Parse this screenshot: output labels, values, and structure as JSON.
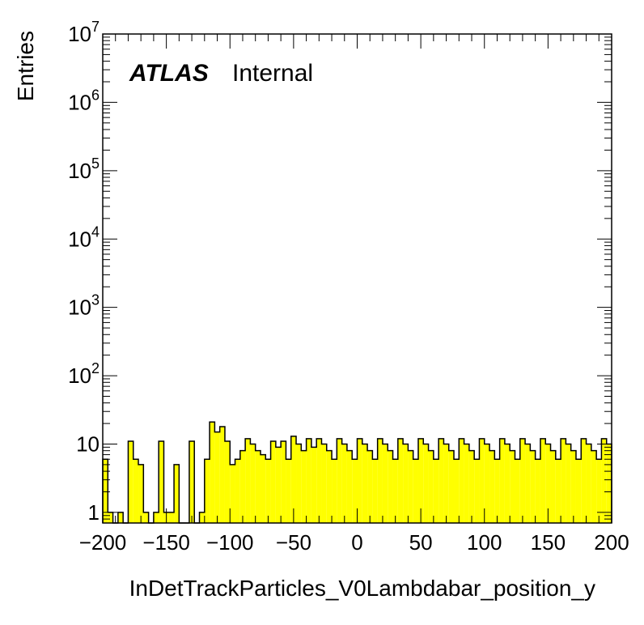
{
  "chart_data": {
    "type": "bar",
    "histogram": true,
    "title": "",
    "xlabel": "InDetTrackParticles_V0Lambdabar_position_y",
    "ylabel": "Entries",
    "xlim": [
      -200,
      200
    ],
    "ylim": [
      0.7,
      10000000
    ],
    "yscale": "log",
    "bin_width": 4,
    "grid": false,
    "legend": "none",
    "fill_color": "#ffff00",
    "line_color": "#000000",
    "label": {
      "experiment": "ATLAS",
      "status": "Internal"
    },
    "x_ticks": [
      {
        "value": -200,
        "label": "−200"
      },
      {
        "value": -150,
        "label": "−150"
      },
      {
        "value": -100,
        "label": "−100"
      },
      {
        "value": -50,
        "label": "−50"
      },
      {
        "value": 0,
        "label": "0"
      },
      {
        "value": 50,
        "label": "50"
      },
      {
        "value": 100,
        "label": "100"
      },
      {
        "value": 150,
        "label": "150"
      },
      {
        "value": 200,
        "label": "200"
      }
    ],
    "y_ticks": [
      {
        "value": 1,
        "base": "1",
        "exp": ""
      },
      {
        "value": 10,
        "base": "10",
        "exp": ""
      },
      {
        "value": 100,
        "base": "10",
        "exp": "2"
      },
      {
        "value": 1000,
        "base": "10",
        "exp": "3"
      },
      {
        "value": 10000,
        "base": "10",
        "exp": "4"
      },
      {
        "value": 100000,
        "base": "10",
        "exp": "5"
      },
      {
        "value": 1000000,
        "base": "10",
        "exp": "6"
      },
      {
        "value": 10000000,
        "base": "10",
        "exp": "7"
      }
    ],
    "x": [
      -198,
      -194,
      -190,
      -186,
      -182,
      -178,
      -174,
      -170,
      -166,
      -162,
      -158,
      -154,
      -150,
      -146,
      -142,
      -138,
      -134,
      -130,
      -126,
      -122,
      -118,
      -114,
      -110,
      -106,
      -102,
      -98,
      -94,
      -90,
      -86,
      -82,
      -78,
      -74,
      -70,
      -66,
      -62,
      -58,
      -54,
      -50,
      -46,
      -42,
      -38,
      -34,
      -30,
      -26,
      -22,
      -18,
      -14,
      -10,
      -6,
      -2,
      2,
      6,
      10,
      14,
      18,
      22,
      26,
      30,
      34,
      38,
      42,
      46,
      50,
      54,
      58,
      62,
      66,
      70,
      74,
      78,
      82,
      86,
      90,
      94,
      98,
      102,
      106,
      110,
      114,
      118,
      122,
      126,
      130,
      134,
      138,
      142,
      146,
      150,
      154,
      158,
      162,
      166,
      170,
      174,
      178,
      182,
      186,
      190,
      194,
      198
    ],
    "values": [
      6,
      1,
      0,
      1,
      0,
      11,
      6,
      5,
      1,
      0,
      1,
      11,
      1,
      1,
      5,
      0,
      0,
      11,
      0,
      1,
      6,
      21,
      15,
      18,
      11,
      5,
      6,
      8,
      12,
      10,
      8,
      7,
      6,
      11,
      9,
      11,
      6,
      13,
      10,
      8,
      12,
      9,
      12,
      10,
      8,
      6,
      12,
      10,
      8,
      6,
      12,
      10,
      8,
      6,
      12,
      10,
      8,
      6,
      12,
      10,
      8,
      6,
      12,
      10,
      8,
      6,
      12,
      10,
      8,
      6,
      12,
      10,
      8,
      6,
      12,
      10,
      8,
      6,
      12,
      10,
      8,
      6,
      12,
      10,
      8,
      6,
      12,
      10,
      8,
      6,
      12,
      10,
      8,
      6,
      12,
      10,
      8,
      6,
      12,
      10
    ]
  }
}
